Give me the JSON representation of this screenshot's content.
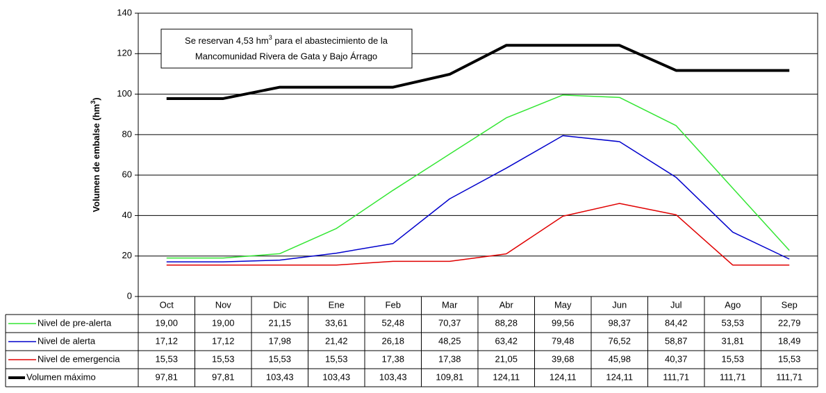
{
  "chart_data": {
    "type": "line",
    "y_label": {
      "before": "Volumen de embalse (hm",
      "sup": "3",
      "after": ")"
    },
    "annotation": {
      "before": "Se reservan 4,53 hm",
      "sup": "3",
      "after": " para el abastecimiento de la",
      "line2": "Mancomunidad Rivera de Gata y Bajo Árrago"
    },
    "categories": [
      "Oct",
      "Nov",
      "Dic",
      "Ene",
      "Feb",
      "Mar",
      "Abr",
      "May",
      "Jun",
      "Jul",
      "Ago",
      "Sep"
    ],
    "ylim": [
      0,
      140
    ],
    "yticks": [
      0,
      20,
      40,
      60,
      80,
      100,
      120,
      140
    ],
    "grid": true,
    "series": [
      {
        "name": "Nivel de pre-alerta",
        "color": "#33e633",
        "width": 1.5,
        "values": [
          19.0,
          19.0,
          21.15,
          33.61,
          52.48,
          70.37,
          88.28,
          99.56,
          98.37,
          84.42,
          53.53,
          22.79
        ],
        "value_labels": [
          "19,00",
          "19,00",
          "21,15",
          "33,61",
          "52,48",
          "70,37",
          "88,28",
          "99,56",
          "98,37",
          "84,42",
          "53,53",
          "22,79"
        ]
      },
      {
        "name": "Nivel de alerta",
        "color": "#0000cc",
        "width": 1.5,
        "values": [
          17.12,
          17.12,
          17.98,
          21.42,
          26.18,
          48.25,
          63.42,
          79.48,
          76.52,
          58.87,
          31.81,
          18.49
        ],
        "value_labels": [
          "17,12",
          "17,12",
          "17,98",
          "21,42",
          "26,18",
          "48,25",
          "63,42",
          "79,48",
          "76,52",
          "58,87",
          "31,81",
          "18,49"
        ]
      },
      {
        "name": "Nivel de emergencia",
        "color": "#e00000",
        "width": 1.5,
        "values": [
          15.53,
          15.53,
          15.53,
          15.53,
          17.38,
          17.38,
          21.05,
          39.68,
          45.98,
          40.37,
          15.53,
          15.53
        ],
        "value_labels": [
          "15,53",
          "15,53",
          "15,53",
          "15,53",
          "17,38",
          "17,38",
          "21,05",
          "39,68",
          "45,98",
          "40,37",
          "15,53",
          "15,53"
        ]
      },
      {
        "name": "Volumen máximo",
        "color": "#000000",
        "width": 4,
        "values": [
          97.81,
          97.81,
          103.43,
          103.43,
          103.43,
          109.81,
          124.11,
          124.11,
          124.11,
          111.71,
          111.71,
          111.71
        ],
        "value_labels": [
          "97,81",
          "97,81",
          "103,43",
          "103,43",
          "103,43",
          "109,81",
          "124,11",
          "124,11",
          "124,11",
          "111,71",
          "111,71",
          "111,71"
        ]
      }
    ]
  }
}
